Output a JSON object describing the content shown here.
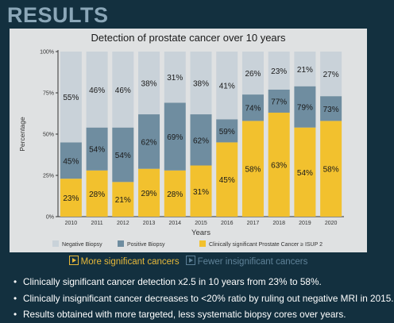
{
  "header": {
    "title": "RESULTS"
  },
  "chart_data": {
    "type": "bar",
    "stacked": true,
    "title": "Detection of prostate cancer over 10 years",
    "xlabel": "Years",
    "ylabel": "Percentage",
    "ylim": [
      0,
      100
    ],
    "yticks": [
      "0%",
      "25%",
      "50%",
      "75%",
      "100%"
    ],
    "categories": [
      "2010",
      "2011",
      "2012",
      "2013",
      "2014",
      "2015",
      "2016",
      "2017",
      "2018",
      "2019",
      "2020"
    ],
    "series": [
      {
        "name": "Clinically significant Prostate Cancer ≥ ISUP 2",
        "color": "#f2c12e",
        "values": [
          23,
          28,
          21,
          29,
          28,
          31,
          45,
          58,
          63,
          54,
          58
        ],
        "labels": [
          "23%",
          "28%",
          "21%",
          "29%",
          "28%",
          "31%",
          "45%",
          "58%",
          "63%",
          "54%",
          "58%"
        ]
      },
      {
        "name": "Positive Biopsy",
        "color": "#6f8da0",
        "values": [
          22,
          26,
          33,
          33,
          41,
          31,
          14,
          16,
          14,
          25,
          15
        ],
        "labels": [
          "45%",
          "54%",
          "54%",
          "62%",
          "69%",
          "62%",
          "59%",
          "74%",
          "77%",
          "79%",
          "73%"
        ]
      },
      {
        "name": "Negative Biopsy",
        "color": "#c9d2d9",
        "values": [
          55,
          46,
          46,
          38,
          31,
          38,
          41,
          26,
          23,
          21,
          27
        ],
        "labels": [
          "55%",
          "46%",
          "46%",
          "38%",
          "31%",
          "38%",
          "41%",
          "26%",
          "23%",
          "21%",
          "27%"
        ]
      }
    ],
    "legend": {
      "position": "bottom",
      "entries": [
        "Negative Biopsy",
        "Positive Biopsy",
        "Clinically significant Prostate Cancer ≥ ISUP 2"
      ]
    },
    "grid": false
  },
  "callout": {
    "more": "More significant cancers",
    "fewer": "Fewer insignificant cancers",
    "more_color": "#e6b83a",
    "fewer_color": "#5f8298"
  },
  "bullets": [
    "Clinically significant cancer detection x2.5 in 10 years from 23% to 58%.",
    "Clinically insignificant cancer decreases to <20% ratio by ruling out negative MRI in 2015.",
    "Results obtained with more targeted, less systematic biopsy cores over years."
  ]
}
